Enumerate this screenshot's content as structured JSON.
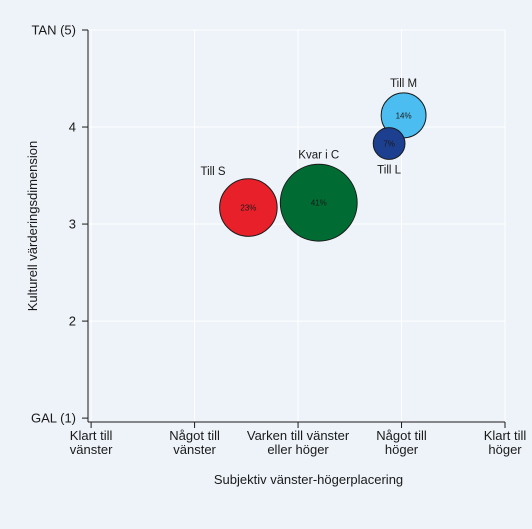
{
  "chart_data": {
    "type": "scatter",
    "subtype": "bubble",
    "xlabel": "Subjektiv vänster-högerplacering",
    "ylabel": "Kulturell värderingsdimension",
    "x_ticks": [
      {
        "value": 1,
        "lines": [
          "Klart till",
          "vänster"
        ]
      },
      {
        "value": 2,
        "lines": [
          "Något till",
          "vänster"
        ]
      },
      {
        "value": 3,
        "lines": [
          "Varken till vänster",
          "eller höger"
        ]
      },
      {
        "value": 4,
        "lines": [
          "Något till",
          "höger"
        ]
      },
      {
        "value": 5,
        "lines": [
          "Klart till",
          "höger"
        ]
      }
    ],
    "y_ticks": [
      {
        "value": 1,
        "label": "GAL (1)"
      },
      {
        "value": 2,
        "label": "2"
      },
      {
        "value": 3,
        "label": "3"
      },
      {
        "value": 4,
        "label": "4"
      },
      {
        "value": 5,
        "label": "TAN (5)"
      }
    ],
    "xlim": [
      0.97,
      5.0
    ],
    "ylim": [
      0.96,
      5.0
    ],
    "grid": true,
    "points": [
      {
        "name": "Till S",
        "x": 2.52,
        "y": 3.17,
        "share": 23,
        "label": "23%",
        "color": "#e8202a",
        "text_color": "#1a1a1a",
        "name_position": "upper-left"
      },
      {
        "name": "Kvar i C",
        "x": 3.2,
        "y": 3.22,
        "share": 41,
        "label": "41%",
        "color": "#006b33",
        "text_color": "#e6efe6",
        "name_position": "above"
      },
      {
        "name": "Till M",
        "x": 4.02,
        "y": 4.12,
        "share": 14,
        "label": "14%",
        "color": "#4cbdf0",
        "text_color": "#1a1a1a",
        "name_position": "above"
      },
      {
        "name": "Till L",
        "x": 3.88,
        "y": 3.83,
        "share": 7,
        "label": "7%",
        "color": "#1c3f8f",
        "text_color": "#1a1a1a",
        "name_position": "below"
      }
    ]
  }
}
